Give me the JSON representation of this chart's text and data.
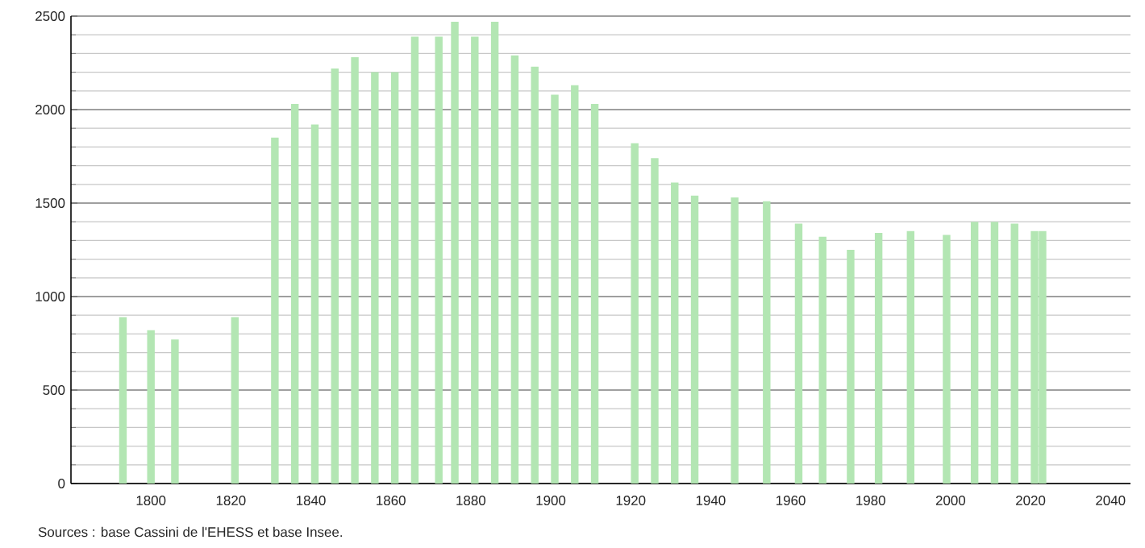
{
  "chart_data": {
    "type": "bar",
    "color": "#b3e6b3",
    "x": [
      1793,
      1800,
      1806,
      1821,
      1831,
      1836,
      1841,
      1846,
      1851,
      1856,
      1861,
      1866,
      1872,
      1876,
      1881,
      1886,
      1891,
      1896,
      1901,
      1906,
      1911,
      1921,
      1926,
      1931,
      1936,
      1946,
      1954,
      1962,
      1968,
      1975,
      1982,
      1990,
      1999,
      2006,
      2011,
      2016,
      2021,
      2023
    ],
    "values": [
      890,
      820,
      770,
      890,
      1850,
      2030,
      1920,
      2220,
      2280,
      2200,
      2200,
      2390,
      2390,
      2470,
      2390,
      2470,
      2290,
      2230,
      2080,
      2130,
      2030,
      1820,
      1740,
      1610,
      1540,
      1530,
      1510,
      1390,
      1320,
      1250,
      1340,
      1350,
      1330,
      1400,
      1400,
      1390,
      1350,
      1350
    ],
    "xlim": [
      1780,
      2045
    ],
    "xticks": [
      1800,
      1820,
      1840,
      1860,
      1880,
      1900,
      1920,
      1940,
      1960,
      1980,
      2000,
      2020,
      2040
    ],
    "ylim": [
      0,
      2500
    ],
    "yticks": [
      0,
      500,
      1000,
      1500,
      2000,
      2500
    ],
    "grid": "y",
    "annotations": [
      "Sources : base Cassini de l'EHESS et base Insee."
    ]
  }
}
